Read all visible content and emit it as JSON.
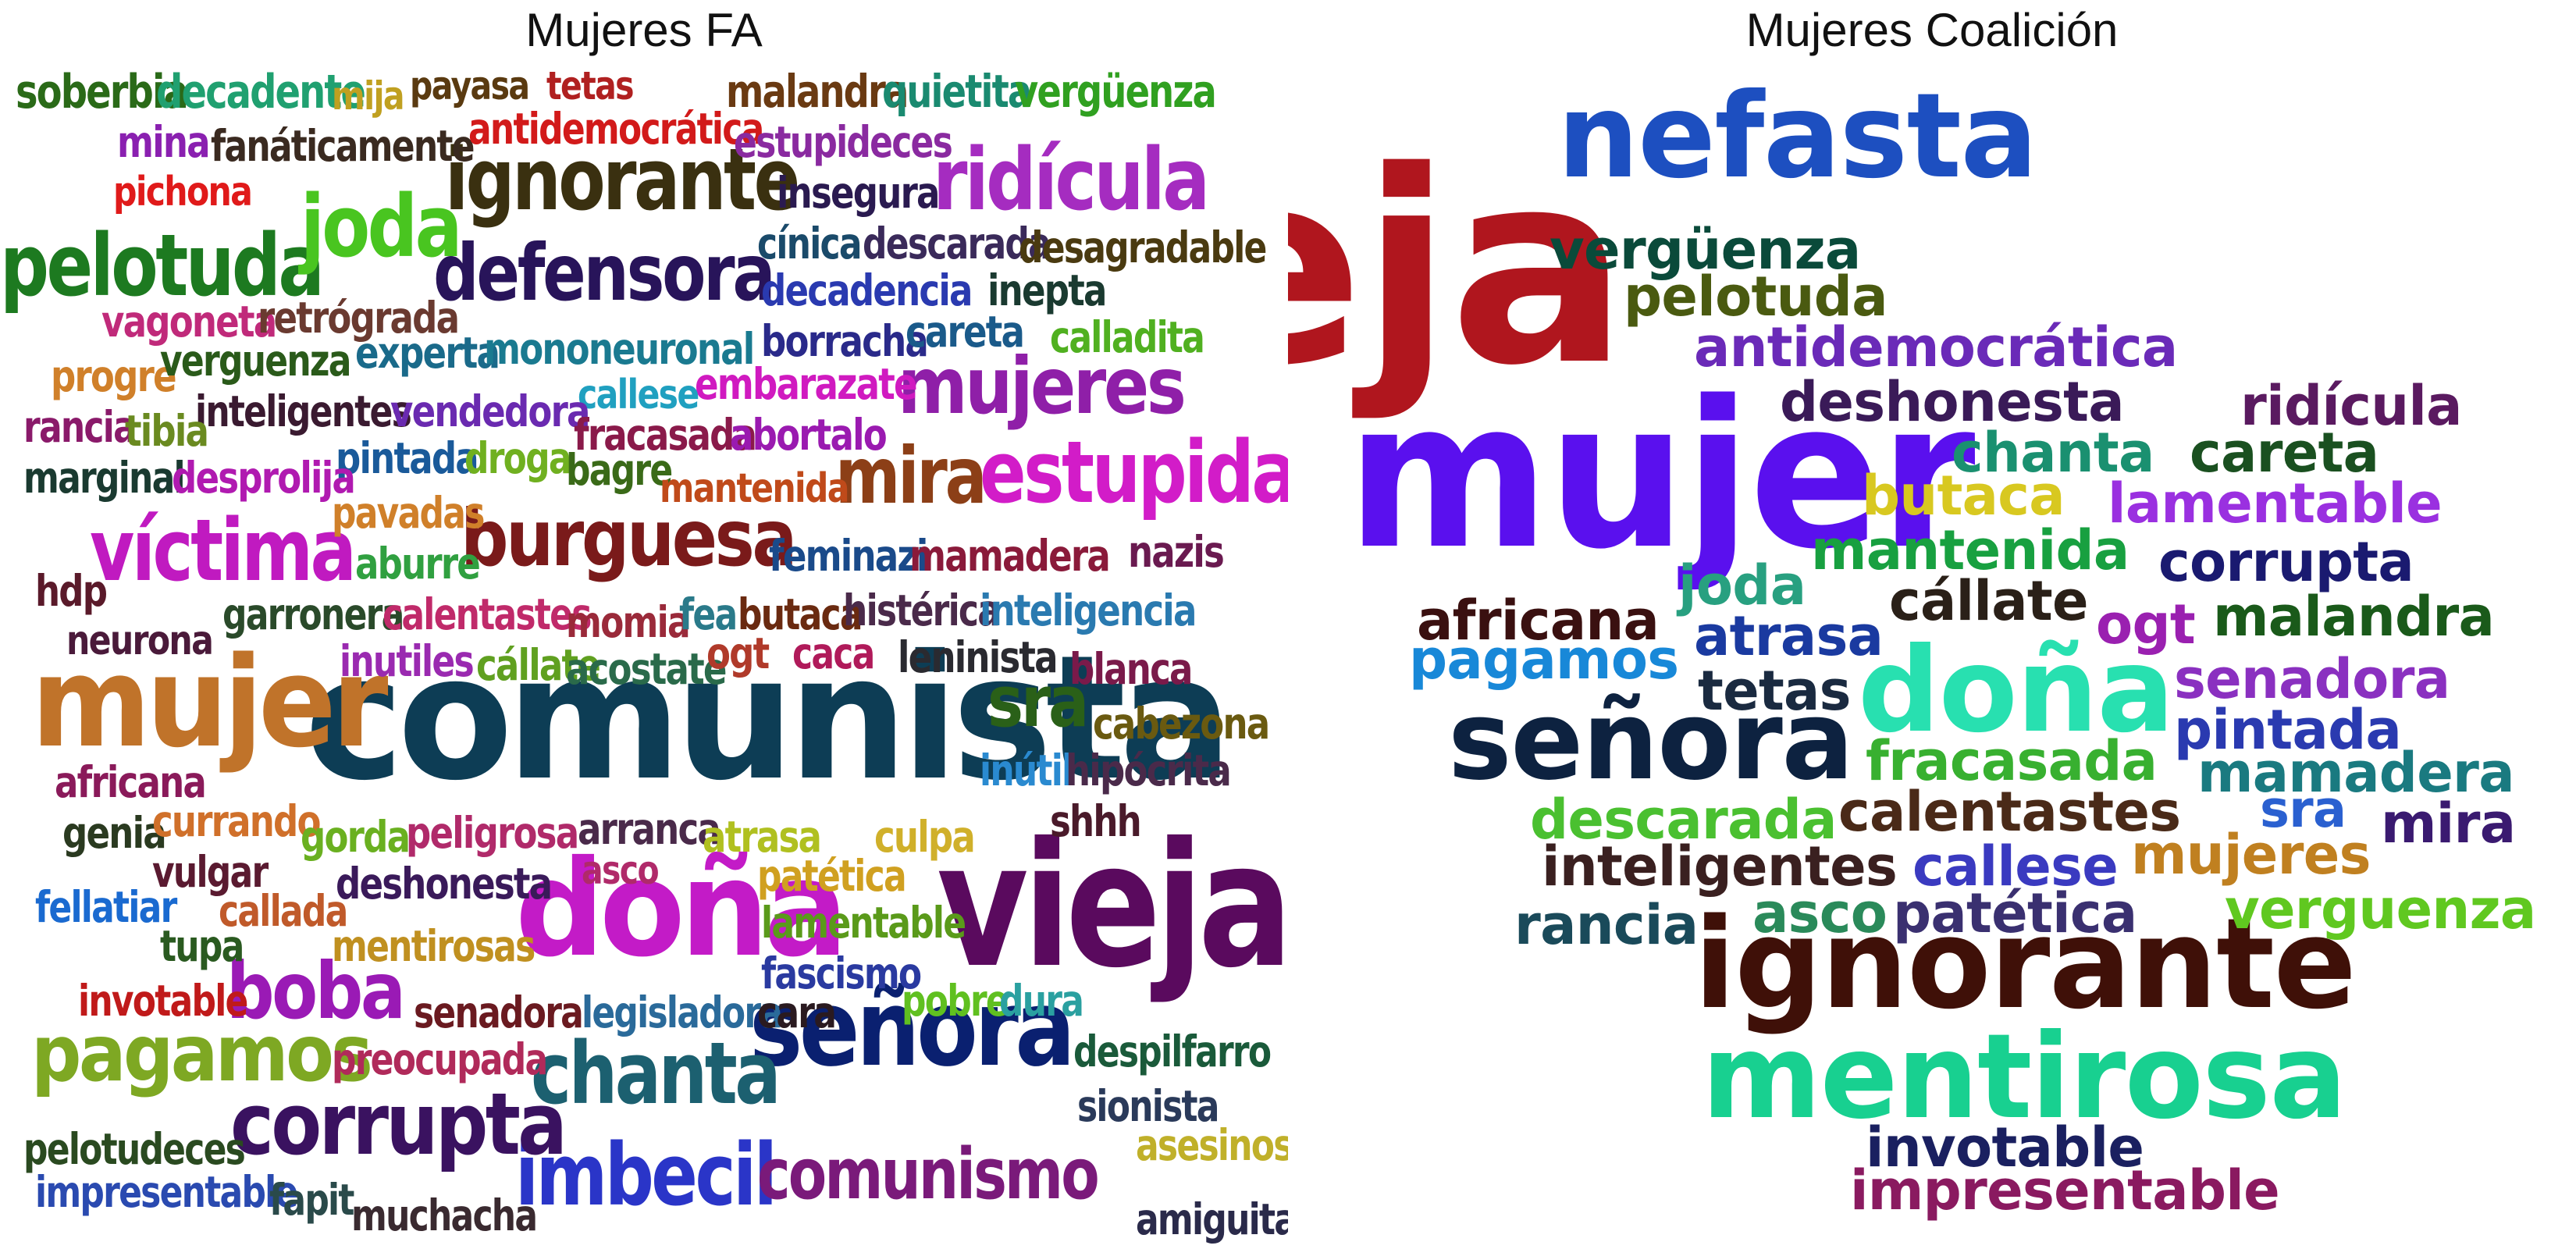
{
  "panels": [
    {
      "title": "Mujeres FA",
      "words": [
        {
          "t": "comunista",
          "c": "#0d3d55"
        },
        {
          "t": "vieja",
          "c": "#5a0a5e"
        },
        {
          "t": "doña",
          "c": "#c31bc7"
        },
        {
          "t": "mujer",
          "c": "#c0732a"
        },
        {
          "t": "señora",
          "c": "#0a2070"
        },
        {
          "t": "imbecil",
          "c": "#2a35c8"
        },
        {
          "t": "comunismo",
          "c": "#7a1a7a"
        },
        {
          "t": "corrupta",
          "c": "#3a1260"
        },
        {
          "t": "pagamos",
          "c": "#7ea823"
        },
        {
          "t": "chanta",
          "c": "#1c6070"
        },
        {
          "t": "boba",
          "c": "#9a1ab5"
        },
        {
          "t": "burguesa",
          "c": "#7a1a1a"
        },
        {
          "t": "ignorante",
          "c": "#3a3010"
        },
        {
          "t": "pelotuda",
          "c": "#1d7a20"
        },
        {
          "t": "joda",
          "c": "#49c520"
        },
        {
          "t": "ridícula",
          "c": "#a52cc0"
        },
        {
          "t": "defensora",
          "c": "#28145a"
        },
        {
          "t": "mujeres",
          "c": "#8f1fa8"
        },
        {
          "t": "estupida",
          "c": "#d21cc8"
        },
        {
          "t": "mira",
          "c": "#8c3f17"
        },
        {
          "t": "víctima",
          "c": "#c01ac0"
        },
        {
          "t": "sra",
          "c": "#2a6018"
        },
        {
          "t": "soberbia",
          "c": "#2a6a18"
        },
        {
          "t": "decadente",
          "c": "#20a070"
        },
        {
          "t": "mija",
          "c": "#c0a020"
        },
        {
          "t": "payasa",
          "c": "#5a3a10"
        },
        {
          "t": "tetas",
          "c": "#b02020"
        },
        {
          "t": "malandra",
          "c": "#6a3a12"
        },
        {
          "t": "quietita",
          "c": "#1a8a70"
        },
        {
          "t": "vergüenza",
          "c": "#30a020"
        },
        {
          "t": "mina",
          "c": "#8a20b0"
        },
        {
          "t": "fanáticamente",
          "c": "#3a2a20"
        },
        {
          "t": "antidemocrática",
          "c": "#d21a1a"
        },
        {
          "t": "estupideces",
          "c": "#8a2aa0"
        },
        {
          "t": "pichona",
          "c": "#e01a1a"
        },
        {
          "t": "insegura",
          "c": "#2a1a50"
        },
        {
          "t": "cínica",
          "c": "#1a4a6a"
        },
        {
          "t": "descarada",
          "c": "#3a2a5a"
        },
        {
          "t": "desagradable",
          "c": "#4a3a10"
        },
        {
          "t": "decadencia",
          "c": "#2a3ab0"
        },
        {
          "t": "inepta",
          "c": "#1a3a30"
        },
        {
          "t": "vagoneta",
          "c": "#c02a7a"
        },
        {
          "t": "retrógrada",
          "c": "#6a3a30"
        },
        {
          "t": "borracha",
          "c": "#2a2a8a"
        },
        {
          "t": "careta",
          "c": "#1a5a8a"
        },
        {
          "t": "calladita",
          "c": "#50b020"
        },
        {
          "t": "progre",
          "c": "#d0802a"
        },
        {
          "t": "verguenza",
          "c": "#2a5a1a"
        },
        {
          "t": "experta",
          "c": "#1a6a8a"
        },
        {
          "t": "mononeuronal",
          "c": "#1a7a90"
        },
        {
          "t": "embarazate",
          "c": "#d01ac0"
        },
        {
          "t": "callese",
          "c": "#20a0c0"
        },
        {
          "t": "inteligentes",
          "c": "#3a1a30"
        },
        {
          "t": "vendedora",
          "c": "#6a2ab0"
        },
        {
          "t": "rancia",
          "c": "#8a1a6a"
        },
        {
          "t": "tibia",
          "c": "#6a8a20"
        },
        {
          "t": "fracasada",
          "c": "#8a1a4a"
        },
        {
          "t": "abortalo",
          "c": "#9a1ab0"
        },
        {
          "t": "pintada",
          "c": "#1a5a9a"
        },
        {
          "t": "droga",
          "c": "#70b020"
        },
        {
          "t": "bagre",
          "c": "#3a6a18"
        },
        {
          "t": "marginal",
          "c": "#1a3a30"
        },
        {
          "t": "desprolija",
          "c": "#b01ab0"
        },
        {
          "t": "mantenida",
          "c": "#c04a1a"
        },
        {
          "t": "pavadas",
          "c": "#d0802a"
        },
        {
          "t": "aburre",
          "c": "#30a040"
        },
        {
          "t": "feminazi",
          "c": "#1a4a8a"
        },
        {
          "t": "mamadera",
          "c": "#8a1a3a"
        },
        {
          "t": "nazis",
          "c": "#6a1a50"
        },
        {
          "t": "hdp",
          "c": "#5a1a2a"
        },
        {
          "t": "neurona",
          "c": "#4a1a3a"
        },
        {
          "t": "garronera",
          "c": "#2a4a2a"
        },
        {
          "t": "calentastes",
          "c": "#c02a6a"
        },
        {
          "t": "momia",
          "c": "#9a2a3a"
        },
        {
          "t": "fea",
          "c": "#2a7a8a"
        },
        {
          "t": "butaca",
          "c": "#6a2a10"
        },
        {
          "t": "histérica",
          "c": "#4a2a4a"
        },
        {
          "t": "inteligencia",
          "c": "#2a7ab0"
        },
        {
          "t": "inutiles",
          "c": "#9a2ab0"
        },
        {
          "t": "cállate",
          "c": "#60a020"
        },
        {
          "t": "acostate",
          "c": "#2a6a4a"
        },
        {
          "t": "ogt",
          "c": "#b03a2a"
        },
        {
          "t": "caca",
          "c": "#b01a5a"
        },
        {
          "t": "leninista",
          "c": "#2a2a30"
        },
        {
          "t": "blanca",
          "c": "#7a1a4a"
        },
        {
          "t": "cabezona",
          "c": "#6a5a10"
        },
        {
          "t": "africana",
          "c": "#8a1a5a"
        },
        {
          "t": "inútil",
          "c": "#2a8ad0"
        },
        {
          "t": "hipócrita",
          "c": "#4a2a4a"
        },
        {
          "t": "genia",
          "c": "#2a3a20"
        },
        {
          "t": "currando",
          "c": "#d0702a"
        },
        {
          "t": "gorda",
          "c": "#6ab020"
        },
        {
          "t": "peligrosa",
          "c": "#b02a6a"
        },
        {
          "t": "arranca",
          "c": "#4a2a4a"
        },
        {
          "t": "atrasa",
          "c": "#b0c020"
        },
        {
          "t": "culpa",
          "c": "#d0b02a"
        },
        {
          "t": "shhh",
          "c": "#4a1a2a"
        },
        {
          "t": "vulgar",
          "c": "#5a1a30"
        },
        {
          "t": "asco",
          "c": "#b02a6a"
        },
        {
          "t": "patética",
          "c": "#d0a020"
        },
        {
          "t": "deshonesta",
          "c": "#3a1a5a"
        },
        {
          "t": "fellatiar",
          "c": "#1a6ad0"
        },
        {
          "t": "callada",
          "c": "#c05a2a"
        },
        {
          "t": "lamentable",
          "c": "#5a9a1a"
        },
        {
          "t": "tupa",
          "c": "#2a5a20"
        },
        {
          "t": "mentirosas",
          "c": "#c09020"
        },
        {
          "t": "fascismo",
          "c": "#2a3aa0"
        },
        {
          "t": "invotable",
          "c": "#c01a1a"
        },
        {
          "t": "pobre",
          "c": "#60c020"
        },
        {
          "t": "dura",
          "c": "#2aa0a0"
        },
        {
          "t": "senadora",
          "c": "#6a1a20"
        },
        {
          "t": "legisladora",
          "c": "#2a6a9a"
        },
        {
          "t": "cara",
          "c": "#2a1a20"
        },
        {
          "t": "preocupada",
          "c": "#b02a5a"
        },
        {
          "t": "despilfarro",
          "c": "#1a5a3a"
        },
        {
          "t": "sionista",
          "c": "#2a3a5a"
        },
        {
          "t": "pelotudeces",
          "c": "#2a4a20"
        },
        {
          "t": "asesinos",
          "c": "#c0b02a"
        },
        {
          "t": "impresentable",
          "c": "#2a4ab0"
        },
        {
          "t": "fapit",
          "c": "#2a4a4a"
        },
        {
          "t": "muchacha",
          "c": "#3a2a30"
        },
        {
          "t": "amiguita",
          "c": "#2a2a4a"
        }
      ]
    },
    {
      "title": "Mujeres Coalición",
      "words": [
        {
          "t": "vieja",
          "c": "#b0161e"
        },
        {
          "t": "mujer",
          "c": "#5a10ee"
        },
        {
          "t": "nefasta",
          "c": "#1d4fc0"
        },
        {
          "t": "ignorante",
          "c": "#3f1008"
        },
        {
          "t": "mentirosa",
          "c": "#18d090"
        },
        {
          "t": "doña",
          "c": "#28e0b0"
        },
        {
          "t": "señora",
          "c": "#0d2240"
        },
        {
          "t": "vergüenza",
          "c": "#0a4a3a"
        },
        {
          "t": "pelotuda",
          "c": "#4a5a10"
        },
        {
          "t": "antidemocrática",
          "c": "#6a2ab8"
        },
        {
          "t": "deshonesta",
          "c": "#3a1a58"
        },
        {
          "t": "ridícula",
          "c": "#5a1a60"
        },
        {
          "t": "chanta",
          "c": "#1a9070"
        },
        {
          "t": "careta",
          "c": "#1a5020"
        },
        {
          "t": "butaca",
          "c": "#d8c820"
        },
        {
          "t": "lamentable",
          "c": "#9a30e0"
        },
        {
          "t": "mantenida",
          "c": "#18a040"
        },
        {
          "t": "joda",
          "c": "#28a080"
        },
        {
          "t": "corrupta",
          "c": "#1a1a70"
        },
        {
          "t": "africana",
          "c": "#3a1010"
        },
        {
          "t": "cállate",
          "c": "#2a2018"
        },
        {
          "t": "atrasa",
          "c": "#1a3aa0"
        },
        {
          "t": "ogt",
          "c": "#9a20b0"
        },
        {
          "t": "malandra",
          "c": "#1a5a1a"
        },
        {
          "t": "pagamos",
          "c": "#1888d8"
        },
        {
          "t": "tetas",
          "c": "#1a2a40"
        },
        {
          "t": "senadora",
          "c": "#8a30c0"
        },
        {
          "t": "pintada",
          "c": "#2a3ab0"
        },
        {
          "t": "fracasada",
          "c": "#38b030"
        },
        {
          "t": "mamadera",
          "c": "#1a7a80"
        },
        {
          "t": "descarada",
          "c": "#4ac030"
        },
        {
          "t": "calentastes",
          "c": "#4a2a18"
        },
        {
          "t": "sra",
          "c": "#2a60d0"
        },
        {
          "t": "mira",
          "c": "#3a1a70"
        },
        {
          "t": "inteligentes",
          "c": "#3a2020"
        },
        {
          "t": "callese",
          "c": "#3a3ac0"
        },
        {
          "t": "mujeres",
          "c": "#c08020"
        },
        {
          "t": "rancia",
          "c": "#1a4a5a"
        },
        {
          "t": "asco",
          "c": "#2a8a5a"
        },
        {
          "t": "patética",
          "c": "#3a3070"
        },
        {
          "t": "verguenza",
          "c": "#60c820"
        },
        {
          "t": "invotable",
          "c": "#1a2060"
        },
        {
          "t": "impresentable",
          "c": "#8a1a60"
        }
      ]
    }
  ]
}
